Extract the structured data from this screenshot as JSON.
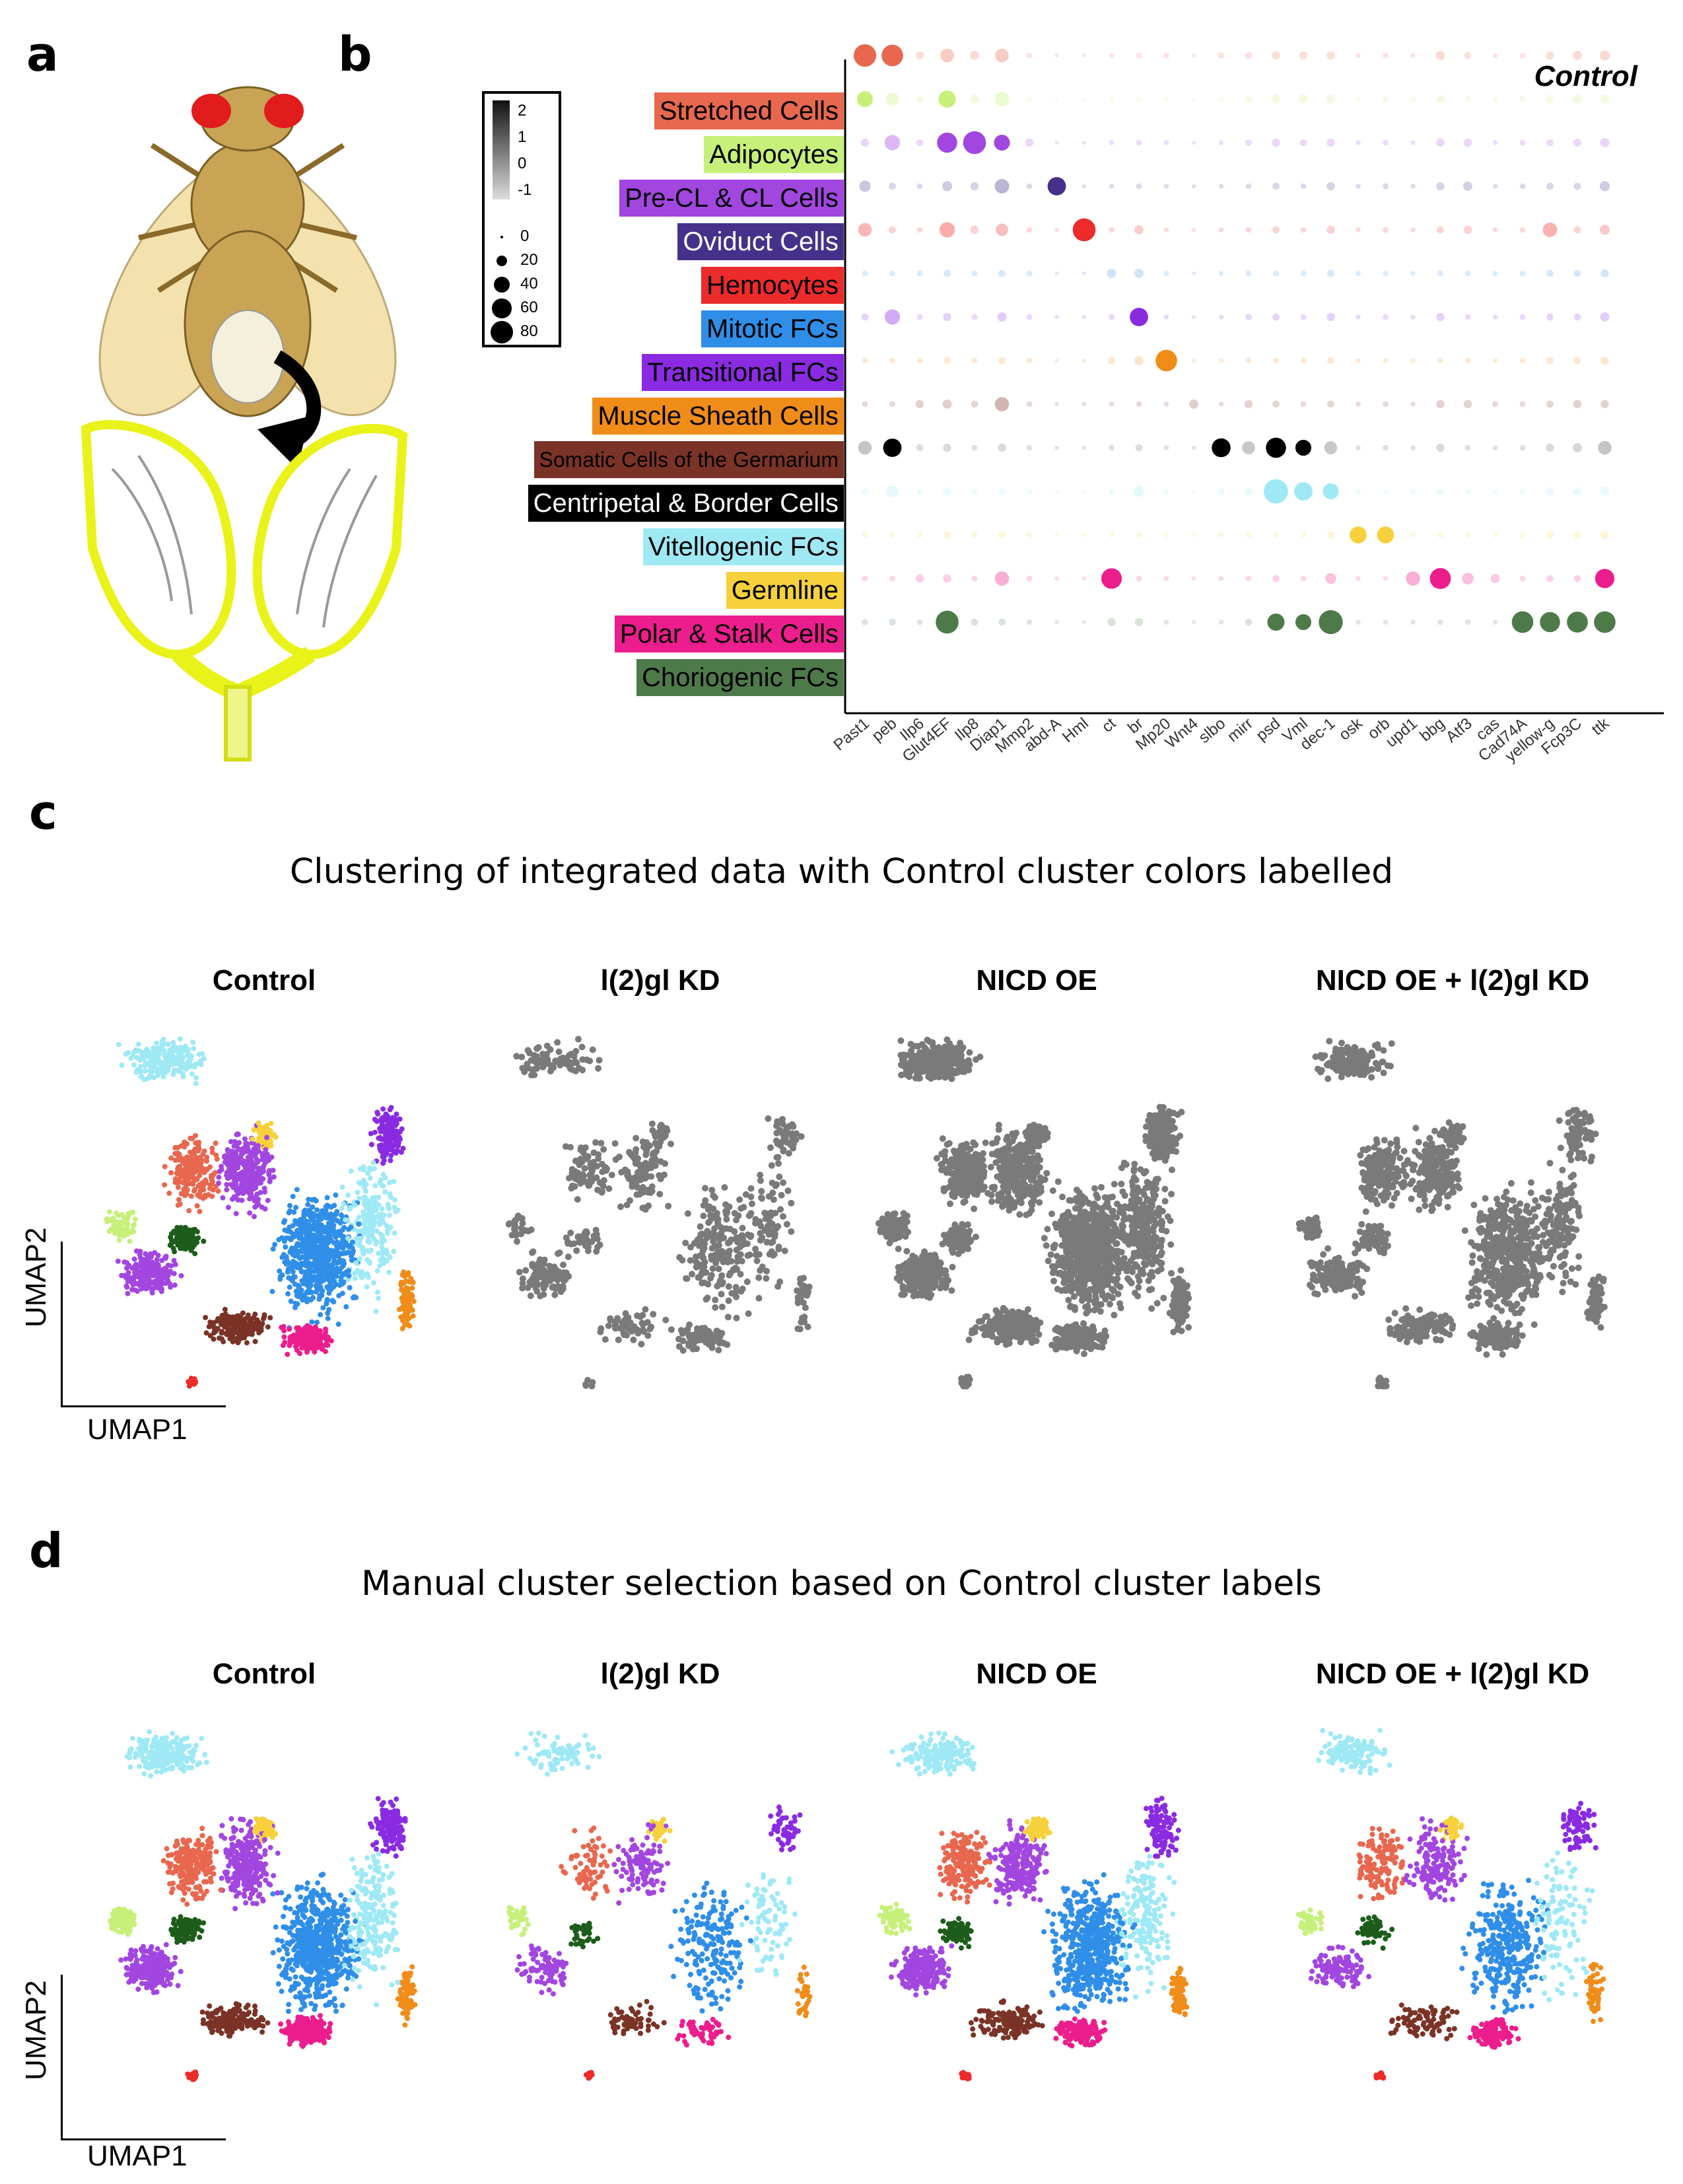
{
  "panels": {
    "a": "a",
    "b": "b",
    "c": "c",
    "d": "d"
  },
  "chart_data": [
    {
      "type": "dotplot",
      "title": "Control",
      "rows": [
        "Stretched Cells",
        "Adipocytes",
        "Pre-CL & CL Cells",
        "Oviduct Cells",
        "Hemocytes",
        "Mitotic FCs",
        "Transitional FCs",
        "Muscle Sheath Cells",
        "Somatic Cells of the Germarium",
        "Centripetal & Border Cells",
        "Vitellogenic FCs",
        "Germline",
        "Polar & Stalk Cells",
        "Choriogenic FCs"
      ],
      "row_colors": [
        "#e8674f",
        "#c7f07a",
        "#a246e0",
        "#46318a",
        "#ec2b2b",
        "#2f8ee8",
        "#8a2be2",
        "#f08c18",
        "#7a3326",
        "#000000",
        "#9fe9f5",
        "#f6d13b",
        "#ec1d8c",
        "#4e7a4a"
      ],
      "row_text_colors": [
        "#000000",
        "#000000",
        "#000000",
        "#ffffff",
        "#000000",
        "#000000",
        "#000000",
        "#000000",
        "#000000",
        "#ffffff",
        "#000000",
        "#000000",
        "#000000",
        "#000000"
      ],
      "genes": [
        "Past1",
        "peb",
        "Ilp6",
        "Glut4EF",
        "Ilp8",
        "Diap1",
        "Mmp2",
        "abd-A",
        "Hml",
        "ct",
        "br",
        "Mp20",
        "Wnt4",
        "slbo",
        "mirr",
        "psd",
        "Vml",
        "dec-1",
        "osk",
        "orb",
        "upd1",
        "bbg",
        "Atf3",
        "cas",
        "Cad74A",
        "yellow-g",
        "Fcp3C",
        "ttk"
      ],
      "legend_color_label": [
        "2",
        "1",
        "0",
        "-1"
      ],
      "legend_size_values": [
        0,
        20,
        40,
        60,
        80
      ],
      "pct_expressed": [
        [
          60,
          55,
          8,
          22,
          10,
          22,
          4,
          2,
          2,
          3,
          4,
          4,
          2,
          5,
          6,
          8,
          8,
          8,
          3,
          4,
          3,
          10,
          6,
          3,
          4,
          8,
          10,
          12
        ],
        [
          30,
          20,
          6,
          35,
          10,
          25,
          4,
          2,
          2,
          3,
          4,
          3,
          2,
          3,
          6,
          10,
          10,
          10,
          3,
          4,
          3,
          8,
          4,
          3,
          5,
          8,
          10,
          10
        ],
        [
          8,
          28,
          6,
          48,
          62,
          30,
          8,
          2,
          2,
          3,
          4,
          3,
          2,
          3,
          5,
          8,
          6,
          8,
          3,
          4,
          3,
          8,
          8,
          3,
          4,
          6,
          8,
          10
        ],
        [
          15,
          6,
          4,
          12,
          8,
          25,
          4,
          40,
          2,
          3,
          4,
          3,
          2,
          3,
          4,
          6,
          4,
          8,
          3,
          4,
          3,
          8,
          10,
          3,
          4,
          6,
          6,
          12
        ],
        [
          22,
          6,
          4,
          28,
          8,
          18,
          4,
          2,
          62,
          4,
          10,
          3,
          2,
          3,
          4,
          6,
          4,
          8,
          3,
          4,
          3,
          6,
          8,
          3,
          4,
          25,
          6,
          12
        ],
        [
          4,
          4,
          4,
          6,
          4,
          6,
          4,
          2,
          2,
          10,
          10,
          3,
          2,
          3,
          4,
          4,
          4,
          6,
          3,
          3,
          3,
          4,
          4,
          3,
          4,
          6,
          6,
          8
        ],
        [
          6,
          28,
          4,
          8,
          4,
          10,
          4,
          2,
          2,
          4,
          40,
          3,
          2,
          3,
          5,
          6,
          4,
          8,
          3,
          4,
          3,
          8,
          4,
          3,
          4,
          6,
          6,
          10
        ],
        [
          4,
          4,
          4,
          6,
          4,
          6,
          4,
          2,
          2,
          6,
          10,
          55,
          2,
          3,
          4,
          4,
          4,
          6,
          3,
          3,
          3,
          4,
          4,
          3,
          4,
          6,
          6,
          8
        ],
        [
          4,
          4,
          8,
          10,
          6,
          24,
          4,
          2,
          2,
          3,
          4,
          3,
          10,
          3,
          8,
          6,
          4,
          6,
          3,
          4,
          3,
          8,
          8,
          4,
          4,
          6,
          8,
          8
        ],
        [
          22,
          40,
          6,
          8,
          4,
          8,
          4,
          2,
          2,
          4,
          6,
          3,
          2,
          42,
          20,
          48,
          30,
          20,
          3,
          4,
          3,
          8,
          4,
          3,
          4,
          8,
          10,
          22
        ],
        [
          6,
          16,
          4,
          8,
          4,
          6,
          4,
          2,
          2,
          4,
          14,
          3,
          2,
          5,
          8,
          70,
          40,
          30,
          4,
          3,
          3,
          6,
          4,
          3,
          4,
          8,
          8,
          10
        ],
        [
          4,
          4,
          4,
          6,
          4,
          6,
          4,
          2,
          2,
          3,
          4,
          3,
          2,
          3,
          4,
          4,
          4,
          6,
          34,
          34,
          3,
          4,
          4,
          3,
          4,
          6,
          6,
          8
        ],
        [
          4,
          4,
          8,
          8,
          4,
          24,
          4,
          2,
          2,
          50,
          4,
          3,
          2,
          3,
          4,
          6,
          4,
          14,
          3,
          3,
          24,
          52,
          16,
          10,
          4,
          6,
          6,
          44
        ],
        [
          5,
          6,
          4,
          62,
          6,
          6,
          4,
          2,
          2,
          8,
          8,
          3,
          2,
          3,
          6,
          35,
          30,
          68,
          3,
          3,
          3,
          4,
          4,
          3,
          55,
          48,
          52,
          55
        ]
      ],
      "avg_expression_scale": [
        -1,
        2
      ]
    },
    {
      "type": "scatter",
      "title": "Clustering of integrated data with Control cluster colors labelled",
      "xlabel": "UMAP1",
      "ylabel": "UMAP2",
      "subplots": [
        "Control",
        "l(2)gl KD",
        "NICD OE",
        "NICD OE + l(2)gl KD"
      ]
    },
    {
      "type": "scatter",
      "title": "Manual cluster selection based on Control cluster labels",
      "xlabel": "UMAP1",
      "ylabel": "UMAP2",
      "subplots": [
        "Control",
        "l(2)gl KD",
        "NICD OE",
        "NICD OE + l(2)gl KD"
      ]
    }
  ],
  "colors": {
    "grey_points": "#7a7a7a",
    "fly_body": "#c9a455",
    "ovary_outline": "#e9f219"
  }
}
